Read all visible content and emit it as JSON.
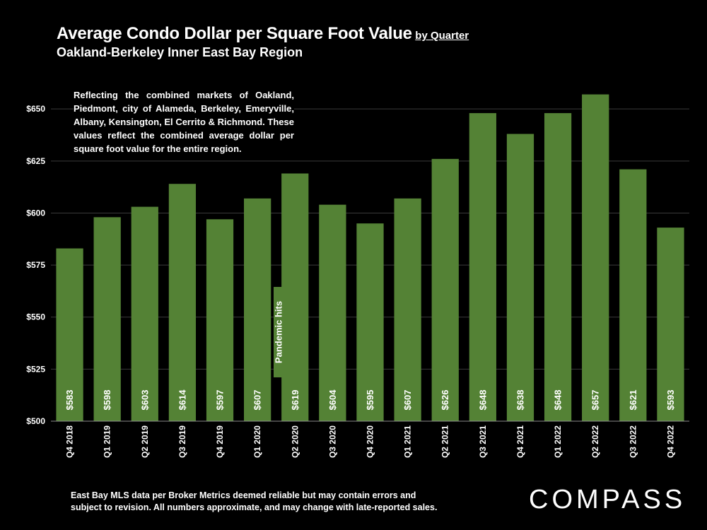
{
  "header": {
    "title": "Average Condo Dollar per Square Foot Value",
    "title_suffix": "by Quarter",
    "subtitle": "Oakland-Berkeley Inner East Bay Region"
  },
  "annotation_text": "Reflecting the combined markets of Oakland, Piedmont, city of Alameda, Berkeley, Emeryville, Albany, Kensington, El Cerrito & Richmond. These values reflect the combined average dollar per square foot value for the entire region.",
  "pandemic_label": "Pandemic hits",
  "footnote": "East Bay MLS data per Broker Metrics deemed reliable but may contain errors and subject to revision. All numbers approximate, and may change with late-reported sales.",
  "logo_text": "COMPASS",
  "colors": {
    "bar": "#548235",
    "background": "#000000",
    "grid": "#3a3a3a",
    "text": "#ffffff"
  },
  "chart_data": {
    "type": "bar",
    "title": "Average Condo Dollar per Square Foot Value by Quarter",
    "categories": [
      "Q4 2018",
      "Q1 2019",
      "Q2 2019",
      "Q3 2019",
      "Q4 2019",
      "Q1 2020",
      "Q2 2020",
      "Q3 2020",
      "Q4 2020",
      "Q1 2021",
      "Q2 2021",
      "Q3 2021",
      "Q4 2021",
      "Q1 2022",
      "Q2 2022",
      "Q3 2022",
      "Q4 2022"
    ],
    "values": [
      583,
      598,
      603,
      614,
      597,
      607,
      619,
      604,
      595,
      607,
      626,
      648,
      638,
      648,
      657,
      621,
      593
    ],
    "value_labels": [
      "$583",
      "$598",
      "$603",
      "$614",
      "$597",
      "$607",
      "$619",
      "$604",
      "$595",
      "$607",
      "$626",
      "$648",
      "$638",
      "$648",
      "$657",
      "$621",
      "$593"
    ],
    "ylim": [
      500,
      665
    ],
    "yticks": [
      500,
      525,
      550,
      575,
      600,
      625,
      650
    ],
    "ytick_labels": [
      "$500",
      "$525",
      "$550",
      "$575",
      "$600",
      "$625",
      "$650"
    ],
    "xlabel": "",
    "ylabel": "",
    "grid": true
  }
}
